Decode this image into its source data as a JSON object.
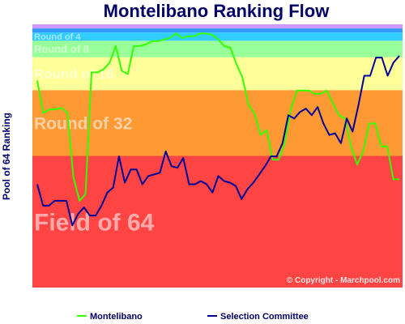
{
  "chart_data": {
    "type": "line",
    "title": "Montelibano Ranking Flow",
    "ylabel": "Pool of 64 Ranking",
    "xlabel": "",
    "ylim": [
      0,
      64
    ],
    "grid": false,
    "legend_placement": "bottom",
    "copyright": "© Copyright - Marchpool.com",
    "bands": [
      {
        "label": "Field of 64",
        "range": [
          0,
          32
        ],
        "color": "#ff4444"
      },
      {
        "label": "Round of 32",
        "range": [
          32,
          48
        ],
        "color": "#ff9933"
      },
      {
        "label": "Round of 16",
        "range": [
          48,
          56
        ],
        "color": "#ffff99"
      },
      {
        "label": "Round of 8",
        "range": [
          56,
          60
        ],
        "color": "#99ff99"
      },
      {
        "label": "Round of 4",
        "range": [
          60,
          62
        ],
        "color": "#33ccff"
      },
      {
        "label": "",
        "range": [
          62,
          63
        ],
        "color": "#3399ff"
      },
      {
        "label": "",
        "range": [
          63,
          64
        ],
        "color": "#cc99ff"
      }
    ],
    "series": [
      {
        "name": "Montelibano",
        "color": "#33ff00",
        "values": [
          50.3,
          42.5,
          43.3,
          43.3,
          43.7,
          42.5,
          26.7,
          21.1,
          22.7,
          52.3,
          52.3,
          53.1,
          54.7,
          58.7,
          52.7,
          51.9,
          58.7,
          58.7,
          59.1,
          59.9,
          59.9,
          60.3,
          60.7,
          61.8,
          60.7,
          61.1,
          61.1,
          61.8,
          61.8,
          61.4,
          60.3,
          58.7,
          58.3,
          54.3,
          51.1,
          44.3,
          42.3,
          37.1,
          38.3,
          31.1,
          31.1,
          35.1,
          43.1,
          47.9,
          47.9,
          47.9,
          47.1,
          47.1,
          47.9,
          44.7,
          41.9,
          41.1,
          34.3,
          29.9,
          33.1,
          39.9,
          39.9,
          34.3,
          34.3,
          26.3,
          26.3
        ]
      },
      {
        "name": "Selection Committee",
        "color": "#000099",
        "values": [
          25.1,
          19.9,
          19.9,
          21.1,
          21.1,
          21.1,
          15.1,
          17.9,
          19.5,
          17.5,
          17.5,
          19.9,
          23.1,
          24.3,
          31.9,
          25.5,
          28.7,
          28.7,
          25.1,
          27.1,
          27.5,
          27.9,
          33.1,
          29.5,
          29.1,
          31.5,
          25.1,
          25.1,
          25.9,
          25.1,
          23.1,
          27.1,
          25.9,
          25.5,
          24.7,
          21.5,
          23.9,
          25.5,
          27.5,
          29.5,
          31.9,
          31.9,
          35.1,
          41.9,
          41.1,
          42.7,
          43.5,
          41.9,
          43.9,
          39.9,
          37.1,
          37.5,
          35.1,
          41.1,
          37.9,
          44.3,
          51.5,
          51.5,
          55.9,
          55.9,
          51.5,
          54.7,
          56.3
        ]
      }
    ]
  }
}
